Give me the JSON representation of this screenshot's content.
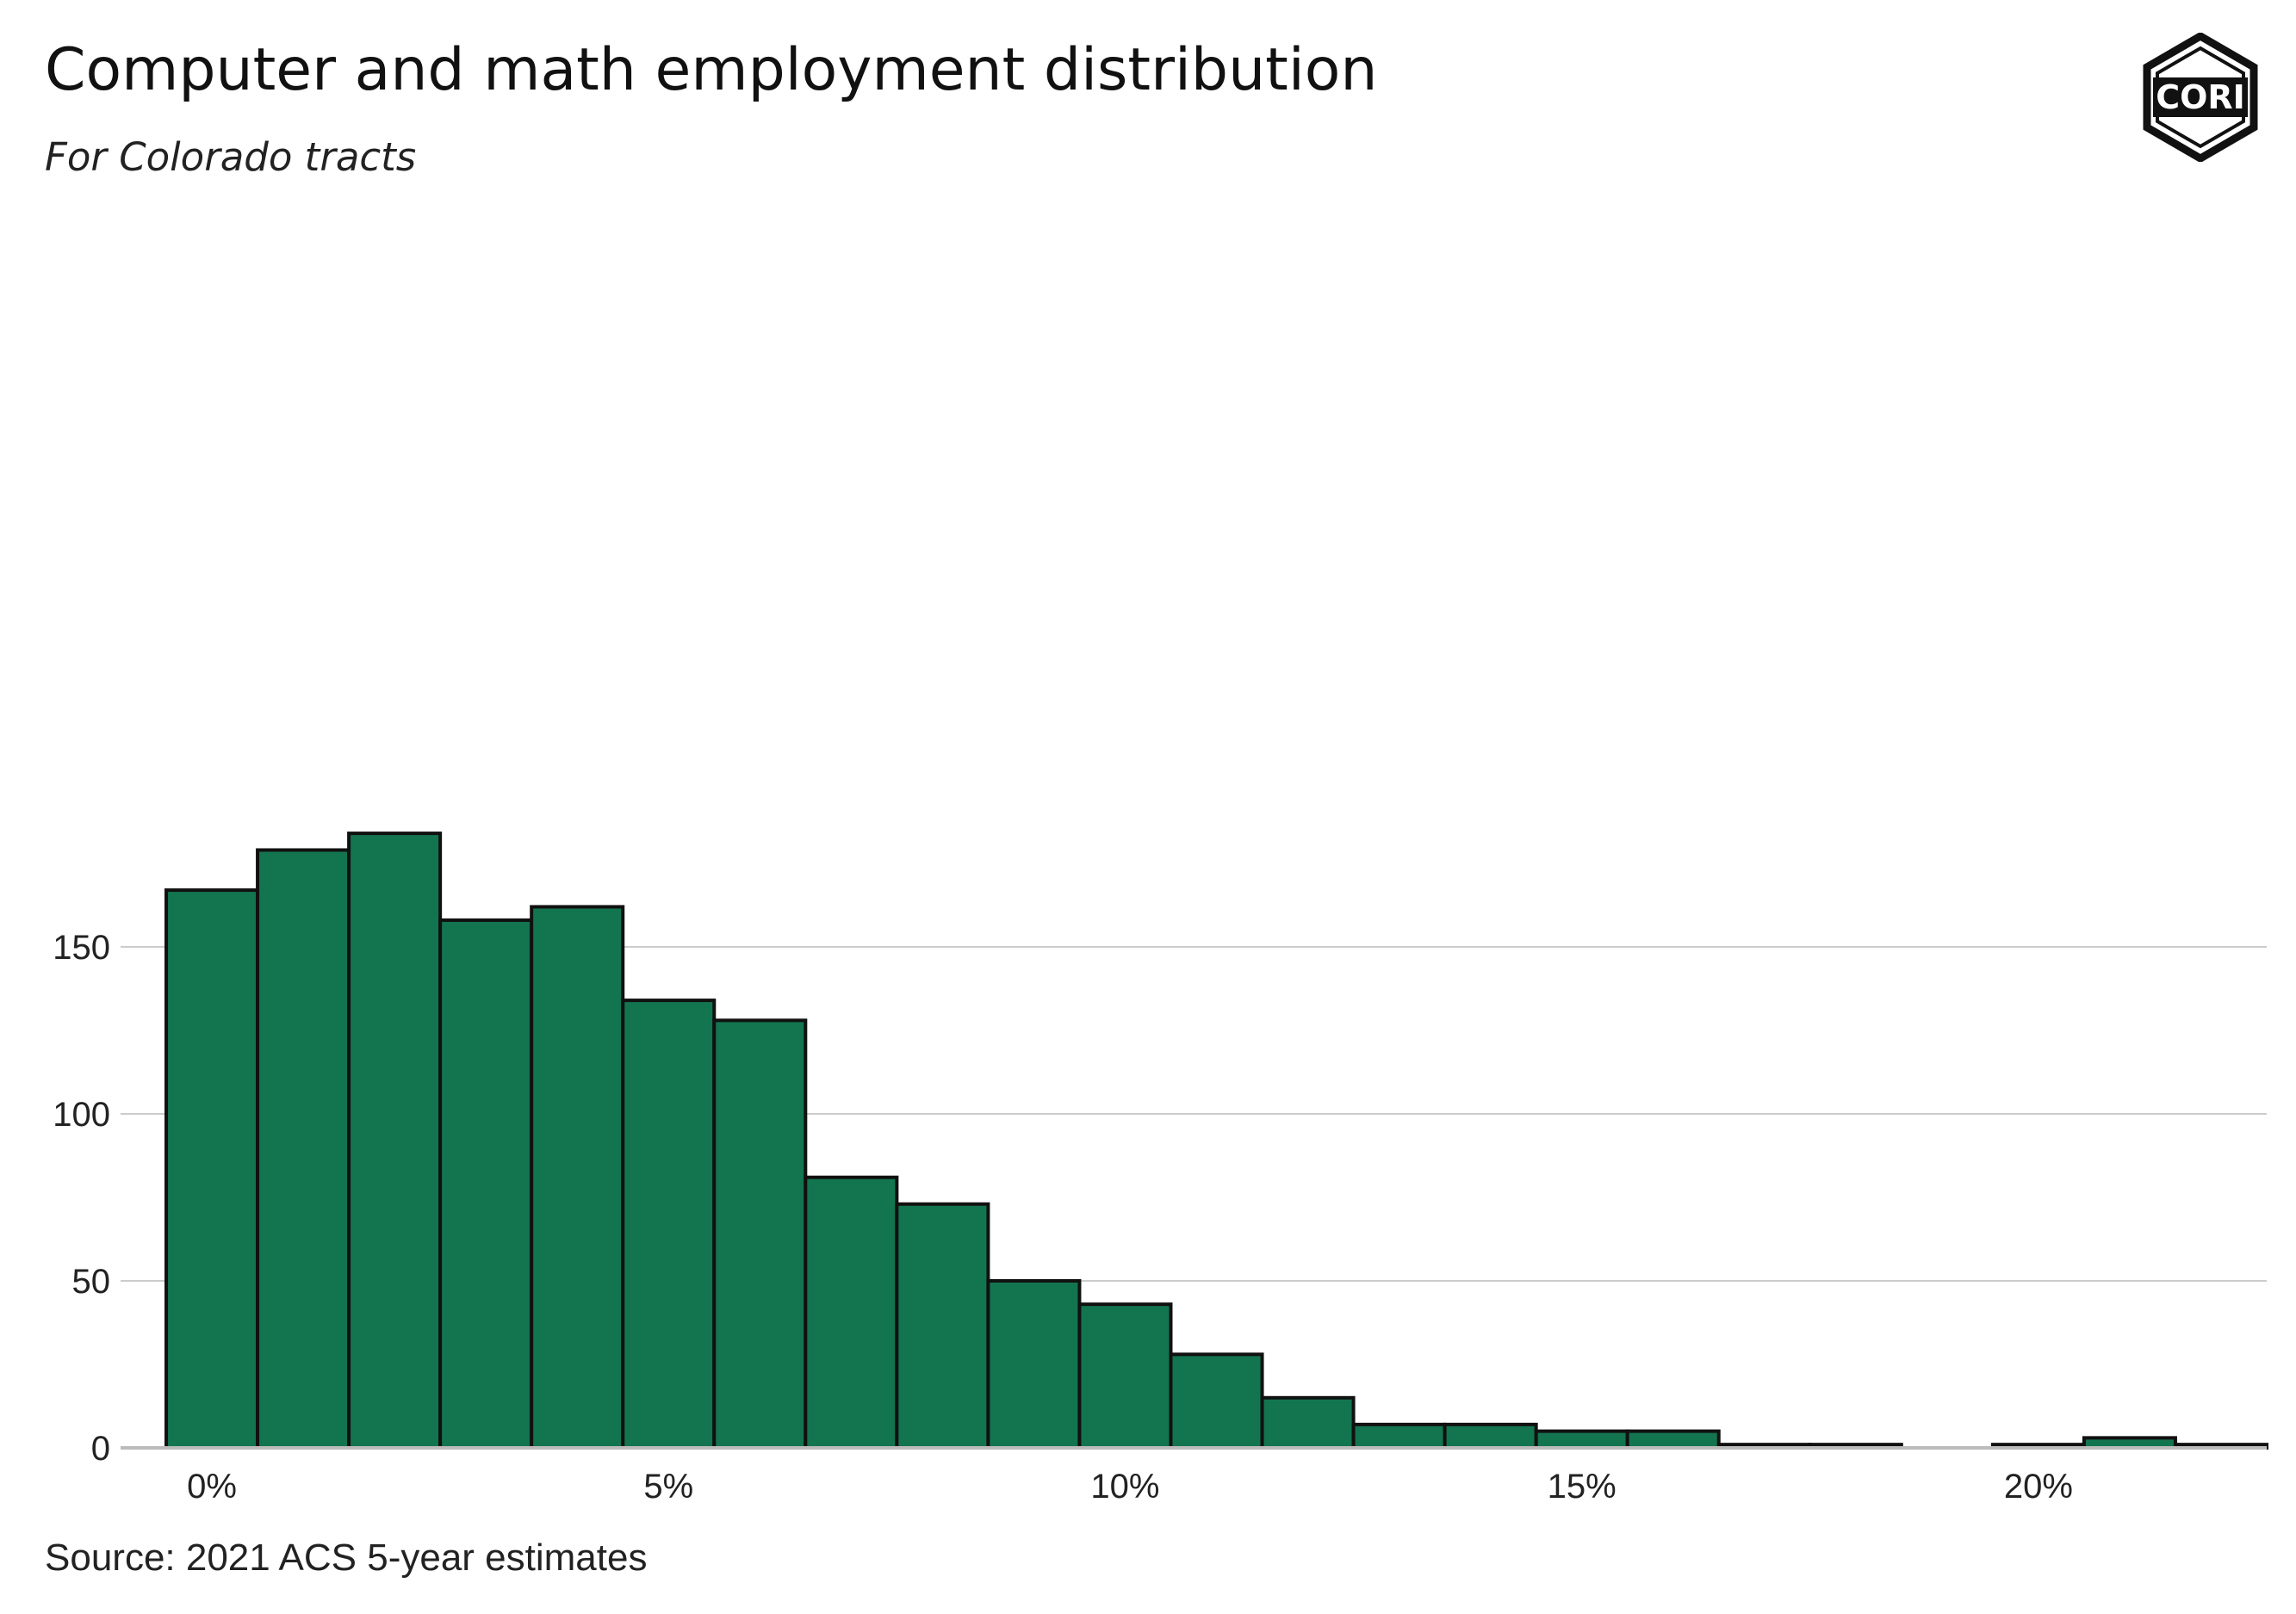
{
  "title": "Computer and math employment distribution",
  "subtitle": "For Colorado tracts",
  "caption": "Source: 2021 ACS 5-year estimates",
  "logo": {
    "text": "CORI",
    "icon": "cori-hexagon-logo"
  },
  "colors": {
    "bar_fill": "#137550",
    "bar_stroke": "#111111",
    "grid": "#cccccc",
    "baseline": "#bbbbbb"
  },
  "chart_data": {
    "type": "bar",
    "title": "Computer and math employment distribution",
    "subtitle": "For Colorado tracts",
    "xlabel": "",
    "ylabel": "",
    "bin_width": 1,
    "bin_centers": [
      0,
      1,
      2,
      3,
      4,
      5,
      6,
      7,
      8,
      9,
      10,
      11,
      12,
      13,
      14,
      15,
      16,
      17,
      18,
      19,
      20,
      21,
      22
    ],
    "values": [
      167,
      179,
      184,
      158,
      162,
      134,
      128,
      81,
      73,
      50,
      43,
      28,
      15,
      7,
      7,
      5,
      5,
      1,
      1,
      0,
      1,
      3,
      1
    ],
    "xlim": [
      -1,
      22.5
    ],
    "ylim": [
      0,
      184
    ],
    "x_ticks": [
      0,
      5,
      10,
      15,
      20
    ],
    "x_tick_labels": [
      "0%",
      "5%",
      "10%",
      "15%",
      "20%"
    ],
    "y_ticks": [
      0,
      50,
      100,
      150
    ],
    "y_tick_labels": [
      "0",
      "50",
      "100",
      "150"
    ],
    "grid": true
  }
}
